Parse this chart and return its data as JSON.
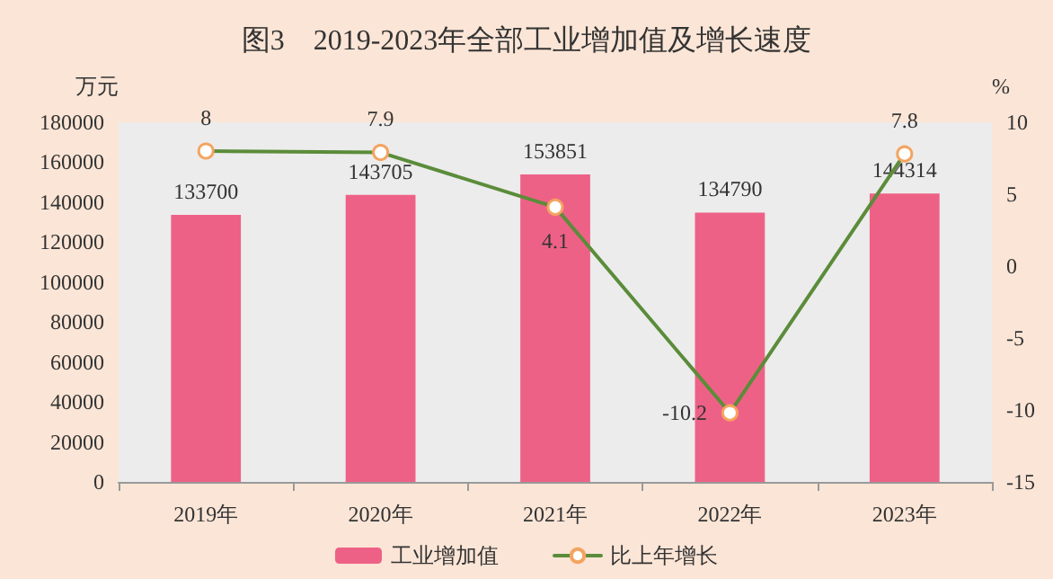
{
  "chart_data": {
    "type": "bar",
    "title": "图3　2019-2023年全部工业增加值及增长速度",
    "categories": [
      "2019年",
      "2020年",
      "2021年",
      "2022年",
      "2023年"
    ],
    "series": [
      {
        "name": "工业增加值",
        "color": "#ee6186",
        "values": [
          133700,
          143705,
          153851,
          134790,
          144314
        ]
      },
      {
        "name": "比上年增长",
        "type": "line",
        "axis": "y2",
        "color": "#5b8c3a",
        "values": [
          8,
          7.9,
          4.1,
          -10.2,
          7.8
        ]
      }
    ],
    "ylabel": "万元",
    "y2label": "%",
    "ylim": [
      0,
      180000
    ],
    "yticks": [
      0,
      20000,
      40000,
      60000,
      80000,
      100000,
      120000,
      140000,
      160000,
      180000
    ],
    "y2lim": [
      -15,
      10
    ],
    "y2ticks": [
      -15,
      -10,
      -5,
      0,
      5,
      10
    ],
    "data_labels": true,
    "legend": "bottom",
    "grid": false,
    "marker": "circle",
    "line_style": "solid"
  }
}
